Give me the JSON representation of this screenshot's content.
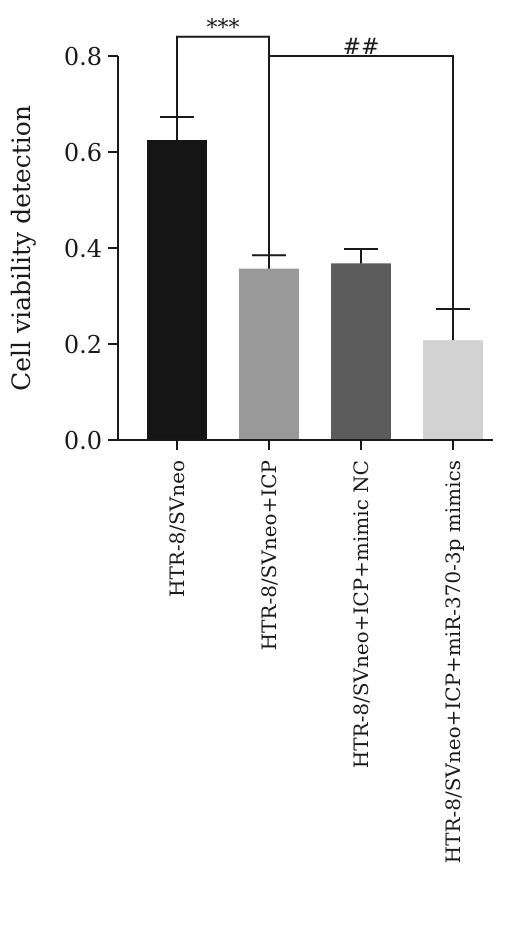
{
  "chart_data": {
    "type": "bar",
    "title": "",
    "xlabel": "",
    "ylabel": "Cell viability detection",
    "ylim": [
      0,
      0.8
    ],
    "yticks": [
      "0.0",
      "0.2",
      "0.4",
      "0.6",
      "0.8"
    ],
    "grid": false,
    "categories": [
      "HTR-8/SVneo",
      "HTR-8/SVneo+ICP",
      "HTR-8/SVneo+ICP+mimic NC",
      "HTR-8/SVneo+ICP+miR-370-3p mimics"
    ],
    "values": [
      0.625,
      0.357,
      0.368,
      0.208
    ],
    "errors": [
      0.048,
      0.028,
      0.03,
      0.065
    ],
    "colors": [
      "#151515",
      "#999999",
      "#5c5c5c",
      "#d2d2d2"
    ],
    "significance": [
      {
        "from": 0,
        "to": 1,
        "label": "***",
        "y": 0.84
      },
      {
        "from": 1,
        "to": 3,
        "label": "##",
        "y": 0.8
      }
    ]
  }
}
